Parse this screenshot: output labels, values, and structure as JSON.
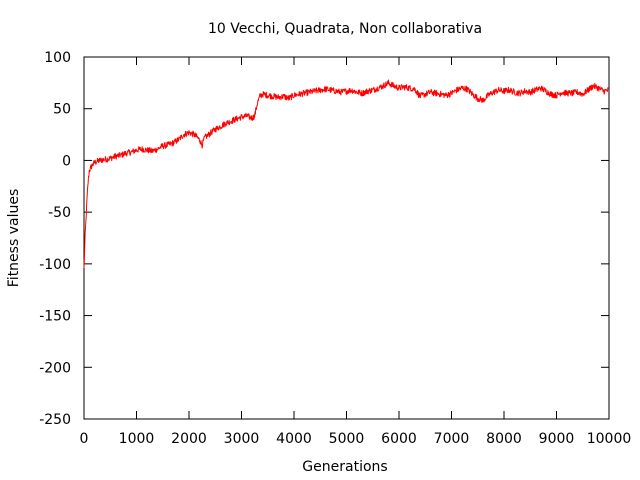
{
  "chart_data": {
    "type": "line",
    "title": "10 Vecchi, Quadrata, Non collaborativa",
    "xlabel": "Generations",
    "ylabel": "Fitness values",
    "xlim": [
      0,
      10000
    ],
    "ylim": [
      -250,
      100
    ],
    "xticks": [
      0,
      1000,
      2000,
      3000,
      4000,
      5000,
      6000,
      7000,
      8000,
      9000,
      10000
    ],
    "yticks": [
      -250,
      -200,
      -150,
      -100,
      -50,
      0,
      50,
      100
    ],
    "grid": false,
    "legend": "none",
    "series": [
      {
        "color": "#ff0000",
        "noise": 3,
        "x": [
          0,
          20,
          40,
          60,
          80,
          100,
          150,
          200,
          300,
          400,
          500,
          600,
          700,
          800,
          900,
          1000,
          1100,
          1200,
          1300,
          1400,
          1500,
          1600,
          1700,
          1800,
          1900,
          2000,
          2100,
          2200,
          2250,
          2300,
          2400,
          2500,
          2600,
          2700,
          2800,
          2900,
          3000,
          3100,
          3200,
          3250,
          3300,
          3350,
          3400,
          3500,
          3600,
          3700,
          3800,
          3900,
          4000,
          4100,
          4200,
          4300,
          4400,
          4500,
          4600,
          4700,
          4800,
          4900,
          5000,
          5100,
          5200,
          5300,
          5400,
          5500,
          5600,
          5700,
          5800,
          5900,
          6000,
          6100,
          6200,
          6300,
          6400,
          6500,
          6600,
          6700,
          6800,
          6900,
          7000,
          7100,
          7200,
          7300,
          7400,
          7500,
          7600,
          7700,
          7800,
          7900,
          8000,
          8100,
          8200,
          8300,
          8400,
          8500,
          8600,
          8700,
          8800,
          8900,
          9000,
          9100,
          9200,
          9300,
          9400,
          9500,
          9600,
          9700,
          9800,
          9900,
          10000
        ],
        "y": [
          -105,
          -75,
          -55,
          -35,
          -20,
          -10,
          -5,
          -2,
          0,
          1,
          2,
          4,
          5,
          7,
          8,
          10,
          11,
          10,
          9,
          11,
          14,
          15,
          17,
          20,
          25,
          27,
          25,
          20,
          15,
          22,
          26,
          30,
          33,
          36,
          38,
          40,
          42,
          43,
          41,
          43,
          55,
          62,
          64,
          63,
          62,
          61,
          62,
          60,
          63,
          64,
          65,
          66,
          67,
          68,
          69,
          68,
          67,
          66,
          67,
          68,
          66,
          65,
          67,
          68,
          70,
          72,
          75,
          72,
          70,
          71,
          70,
          69,
          62,
          64,
          66,
          65,
          64,
          63,
          65,
          68,
          70,
          69,
          64,
          60,
          58,
          63,
          66,
          68,
          67,
          68,
          66,
          65,
          67,
          66,
          68,
          70,
          67,
          64,
          63,
          66,
          65,
          65,
          66,
          64,
          68,
          72,
          70,
          67,
          68
        ]
      }
    ]
  }
}
